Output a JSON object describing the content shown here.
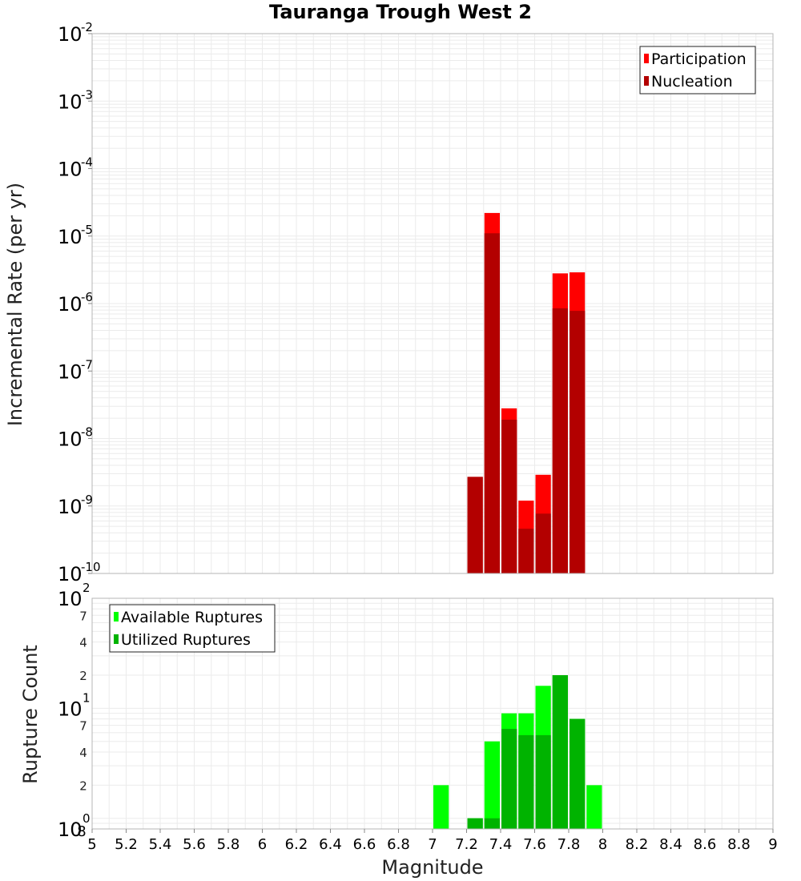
{
  "title": "Tauranga Trough West 2",
  "xlabel": "Magnitude",
  "colors": {
    "participation": "#ff0000",
    "nucleation": "#b30000",
    "available": "#00ff00",
    "utilized": "#00b300",
    "grid": "#ebebeb",
    "frame": "#b4b4b4"
  },
  "chart_data": [
    {
      "type": "bar",
      "ylabel": "Incremental Rate (per yr)",
      "yscale": "log",
      "ylim": [
        1e-10,
        0.01
      ],
      "xlim": [
        5,
        9
      ],
      "x_ticks": [
        "5",
        "5.2",
        "5.4",
        "5.6",
        "5.8",
        "6",
        "6.2",
        "6.4",
        "6.6",
        "6.8",
        "7",
        "7.2",
        "7.4",
        "7.6",
        "7.8",
        "8",
        "8.2",
        "8.4",
        "8.6",
        "8.8",
        "9"
      ],
      "y_major_ticks": [
        {
          "base": "10",
          "exp": "-2"
        },
        {
          "base": "10",
          "exp": "-3"
        },
        {
          "base": "10",
          "exp": "-4"
        },
        {
          "base": "10",
          "exp": "-5"
        },
        {
          "base": "10",
          "exp": "-6"
        },
        {
          "base": "10",
          "exp": "-7"
        },
        {
          "base": "10",
          "exp": "-8"
        },
        {
          "base": "10",
          "exp": "-9"
        },
        {
          "base": "10",
          "exp": "-10"
        }
      ],
      "legend": {
        "position": "top-right",
        "entries": [
          "Participation",
          "Nucleation"
        ]
      },
      "series": [
        {
          "name": "Participation",
          "x": [
            7.25,
            7.35,
            7.45,
            7.55,
            7.65,
            7.75,
            7.85
          ],
          "values": [
            2.7e-09,
            2.2e-05,
            2.8e-08,
            1.2e-09,
            2.9e-09,
            2.8e-06,
            2.9e-06
          ]
        },
        {
          "name": "Nucleation",
          "x": [
            7.25,
            7.35,
            7.45,
            7.55,
            7.65,
            7.75,
            7.85
          ],
          "values": [
            2.7e-09,
            1.1e-05,
            1.9e-08,
            4.6e-10,
            7.7e-10,
            8.5e-07,
            7.8e-07
          ]
        }
      ]
    },
    {
      "type": "bar",
      "ylabel": "Rupture Count",
      "yscale": "log",
      "ylim": [
        0.8,
        100
      ],
      "xlim": [
        5,
        9
      ],
      "y_major_ticks": [
        {
          "base": "10",
          "exp": "2"
        },
        {
          "base": "10",
          "exp": "1"
        },
        {
          "base": "10",
          "exp": "0"
        }
      ],
      "y_minor_ticks": [
        "7",
        "4",
        "2",
        "7",
        "4",
        "2",
        "8"
      ],
      "legend": {
        "position": "top-left",
        "entries": [
          "Available Ruptures",
          "Utilized Ruptures"
        ]
      },
      "series": [
        {
          "name": "Available Ruptures",
          "x": [
            7.05,
            7.25,
            7.35,
            7.45,
            7.55,
            7.65,
            7.75,
            7.85,
            7.95
          ],
          "values": [
            2,
            1,
            5,
            9,
            9,
            16,
            20,
            8,
            2
          ]
        },
        {
          "name": "Utilized Ruptures",
          "x": [
            7.25,
            7.35,
            7.45,
            7.55,
            7.65,
            7.75,
            7.85
          ],
          "values": [
            1,
            1,
            6.5,
            5.7,
            5.7,
            20,
            8
          ]
        }
      ]
    }
  ]
}
